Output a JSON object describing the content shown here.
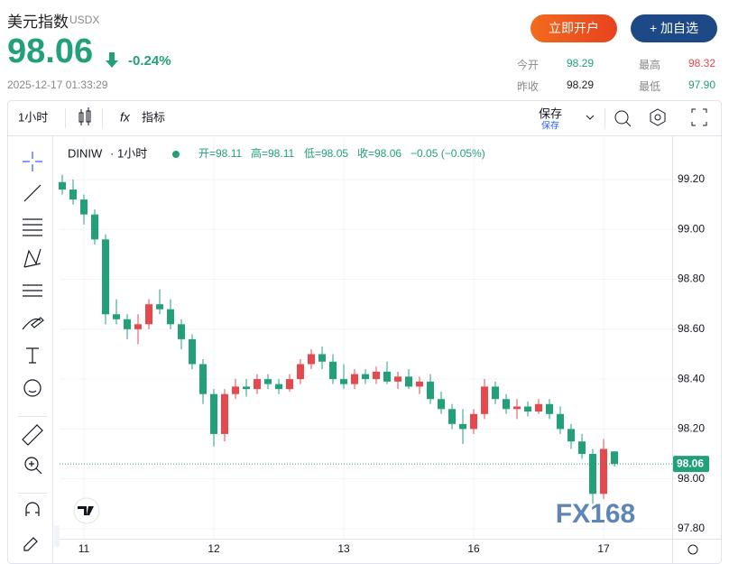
{
  "header": {
    "title": "美元指数",
    "symbol": "USDX",
    "price": "98.06",
    "change": "-0.24%",
    "time": "2025-12-17 01:33:29",
    "buttons": [
      "立即开户",
      "+ 加自选"
    ],
    "stats": [
      {
        "label": "今开",
        "value": "98.29"
      },
      {
        "label": "最高",
        "value": "98.32"
      },
      {
        "label": "昨收",
        "value": "98.29"
      },
      {
        "label": "最低",
        "value": "97.90"
      }
    ]
  },
  "toolbar": {
    "interval": "1小时",
    "indicators": "指标",
    "save": "保存",
    "save_sub": "保存"
  },
  "chart_data": {
    "type": "candlestick",
    "symbol": "DINIW",
    "interval": "1小时",
    "ohlc_legend": [
      "开=98.11",
      "高=98.11",
      "低=98.05",
      "收=98.06"
    ],
    "legend_change": "−0.05 (−0.05%)",
    "up_color": "#e5484d",
    "down_color": "#22a07a",
    "categories": [
      null,
      null,
      "11",
      null,
      null,
      null,
      null,
      null,
      null,
      null,
      null,
      null,
      null,
      null,
      "12",
      null,
      null,
      null,
      null,
      null,
      null,
      null,
      null,
      null,
      null,
      null,
      "13",
      null,
      null,
      null,
      null,
      null,
      null,
      null,
      null,
      null,
      null,
      null,
      "16",
      null,
      null,
      null,
      null,
      null,
      null,
      null,
      null,
      null,
      null,
      null,
      "17",
      null
    ],
    "open": [
      99.19,
      99.16,
      99.12,
      99.06,
      98.96,
      98.66,
      98.64,
      98.6,
      98.62,
      98.7,
      98.68,
      98.62,
      98.56,
      98.46,
      98.34,
      98.18,
      98.34,
      98.37,
      98.36,
      98.4,
      98.38,
      98.36,
      98.4,
      98.46,
      98.5,
      98.47,
      98.4,
      98.38,
      98.42,
      98.4,
      98.43,
      98.39,
      98.41,
      98.37,
      98.39,
      98.32,
      98.28,
      98.22,
      98.2,
      98.26,
      98.37,
      98.32,
      98.28,
      98.29,
      98.27,
      98.3,
      98.26,
      98.2,
      98.15,
      98.1,
      97.94,
      98.11
    ],
    "high": [
      99.22,
      99.2,
      99.14,
      99.08,
      98.98,
      98.72,
      98.66,
      98.66,
      98.72,
      98.76,
      98.72,
      98.64,
      98.58,
      98.48,
      98.36,
      98.36,
      98.4,
      98.4,
      98.42,
      98.42,
      98.4,
      98.42,
      98.48,
      98.52,
      98.53,
      98.5,
      98.46,
      98.44,
      98.44,
      98.45,
      98.47,
      98.43,
      98.44,
      98.41,
      98.42,
      98.35,
      98.3,
      98.28,
      98.28,
      98.4,
      98.39,
      98.34,
      98.32,
      98.31,
      98.32,
      98.32,
      98.29,
      98.22,
      98.18,
      98.12,
      98.16,
      98.11
    ],
    "low": [
      99.14,
      99.1,
      99.02,
      98.94,
      98.62,
      98.62,
      98.56,
      98.54,
      98.6,
      98.66,
      98.6,
      98.52,
      98.44,
      98.3,
      98.13,
      98.15,
      98.32,
      98.33,
      98.34,
      98.36,
      98.34,
      98.35,
      98.38,
      98.44,
      98.44,
      98.38,
      98.36,
      98.36,
      98.38,
      98.38,
      98.38,
      98.36,
      98.36,
      98.34,
      98.3,
      98.26,
      98.2,
      98.14,
      98.18,
      98.24,
      98.3,
      98.26,
      98.24,
      98.25,
      98.26,
      98.24,
      98.18,
      98.12,
      98.08,
      97.9,
      97.92,
      98.05
    ],
    "close": [
      99.16,
      99.12,
      99.06,
      98.96,
      98.66,
      98.64,
      98.6,
      98.62,
      98.7,
      98.68,
      98.62,
      98.56,
      98.46,
      98.34,
      98.18,
      98.34,
      98.37,
      98.36,
      98.4,
      98.38,
      98.36,
      98.4,
      98.46,
      98.5,
      98.47,
      98.4,
      98.38,
      98.42,
      98.4,
      98.43,
      98.39,
      98.41,
      98.37,
      98.39,
      98.32,
      98.28,
      98.22,
      98.2,
      98.26,
      98.37,
      98.32,
      98.28,
      98.29,
      98.27,
      98.3,
      98.26,
      98.2,
      98.15,
      98.1,
      97.94,
      98.12,
      98.06
    ],
    "last_price": 98.06,
    "ylim": [
      97.76,
      99.37
    ],
    "yticks": [
      {
        "value": 97.8,
        "label": "97.80"
      },
      {
        "value": 98.0,
        "label": "98.00"
      },
      {
        "value": 98.2,
        "label": "98.20"
      },
      {
        "value": 98.4,
        "label": "98.40"
      },
      {
        "value": 98.6,
        "label": "98.60"
      },
      {
        "value": 98.8,
        "label": "98.80"
      },
      {
        "value": 99.0,
        "label": "99.00"
      },
      {
        "value": 99.2,
        "label": "99.20"
      }
    ],
    "grid": true,
    "watermark": "FX168"
  }
}
